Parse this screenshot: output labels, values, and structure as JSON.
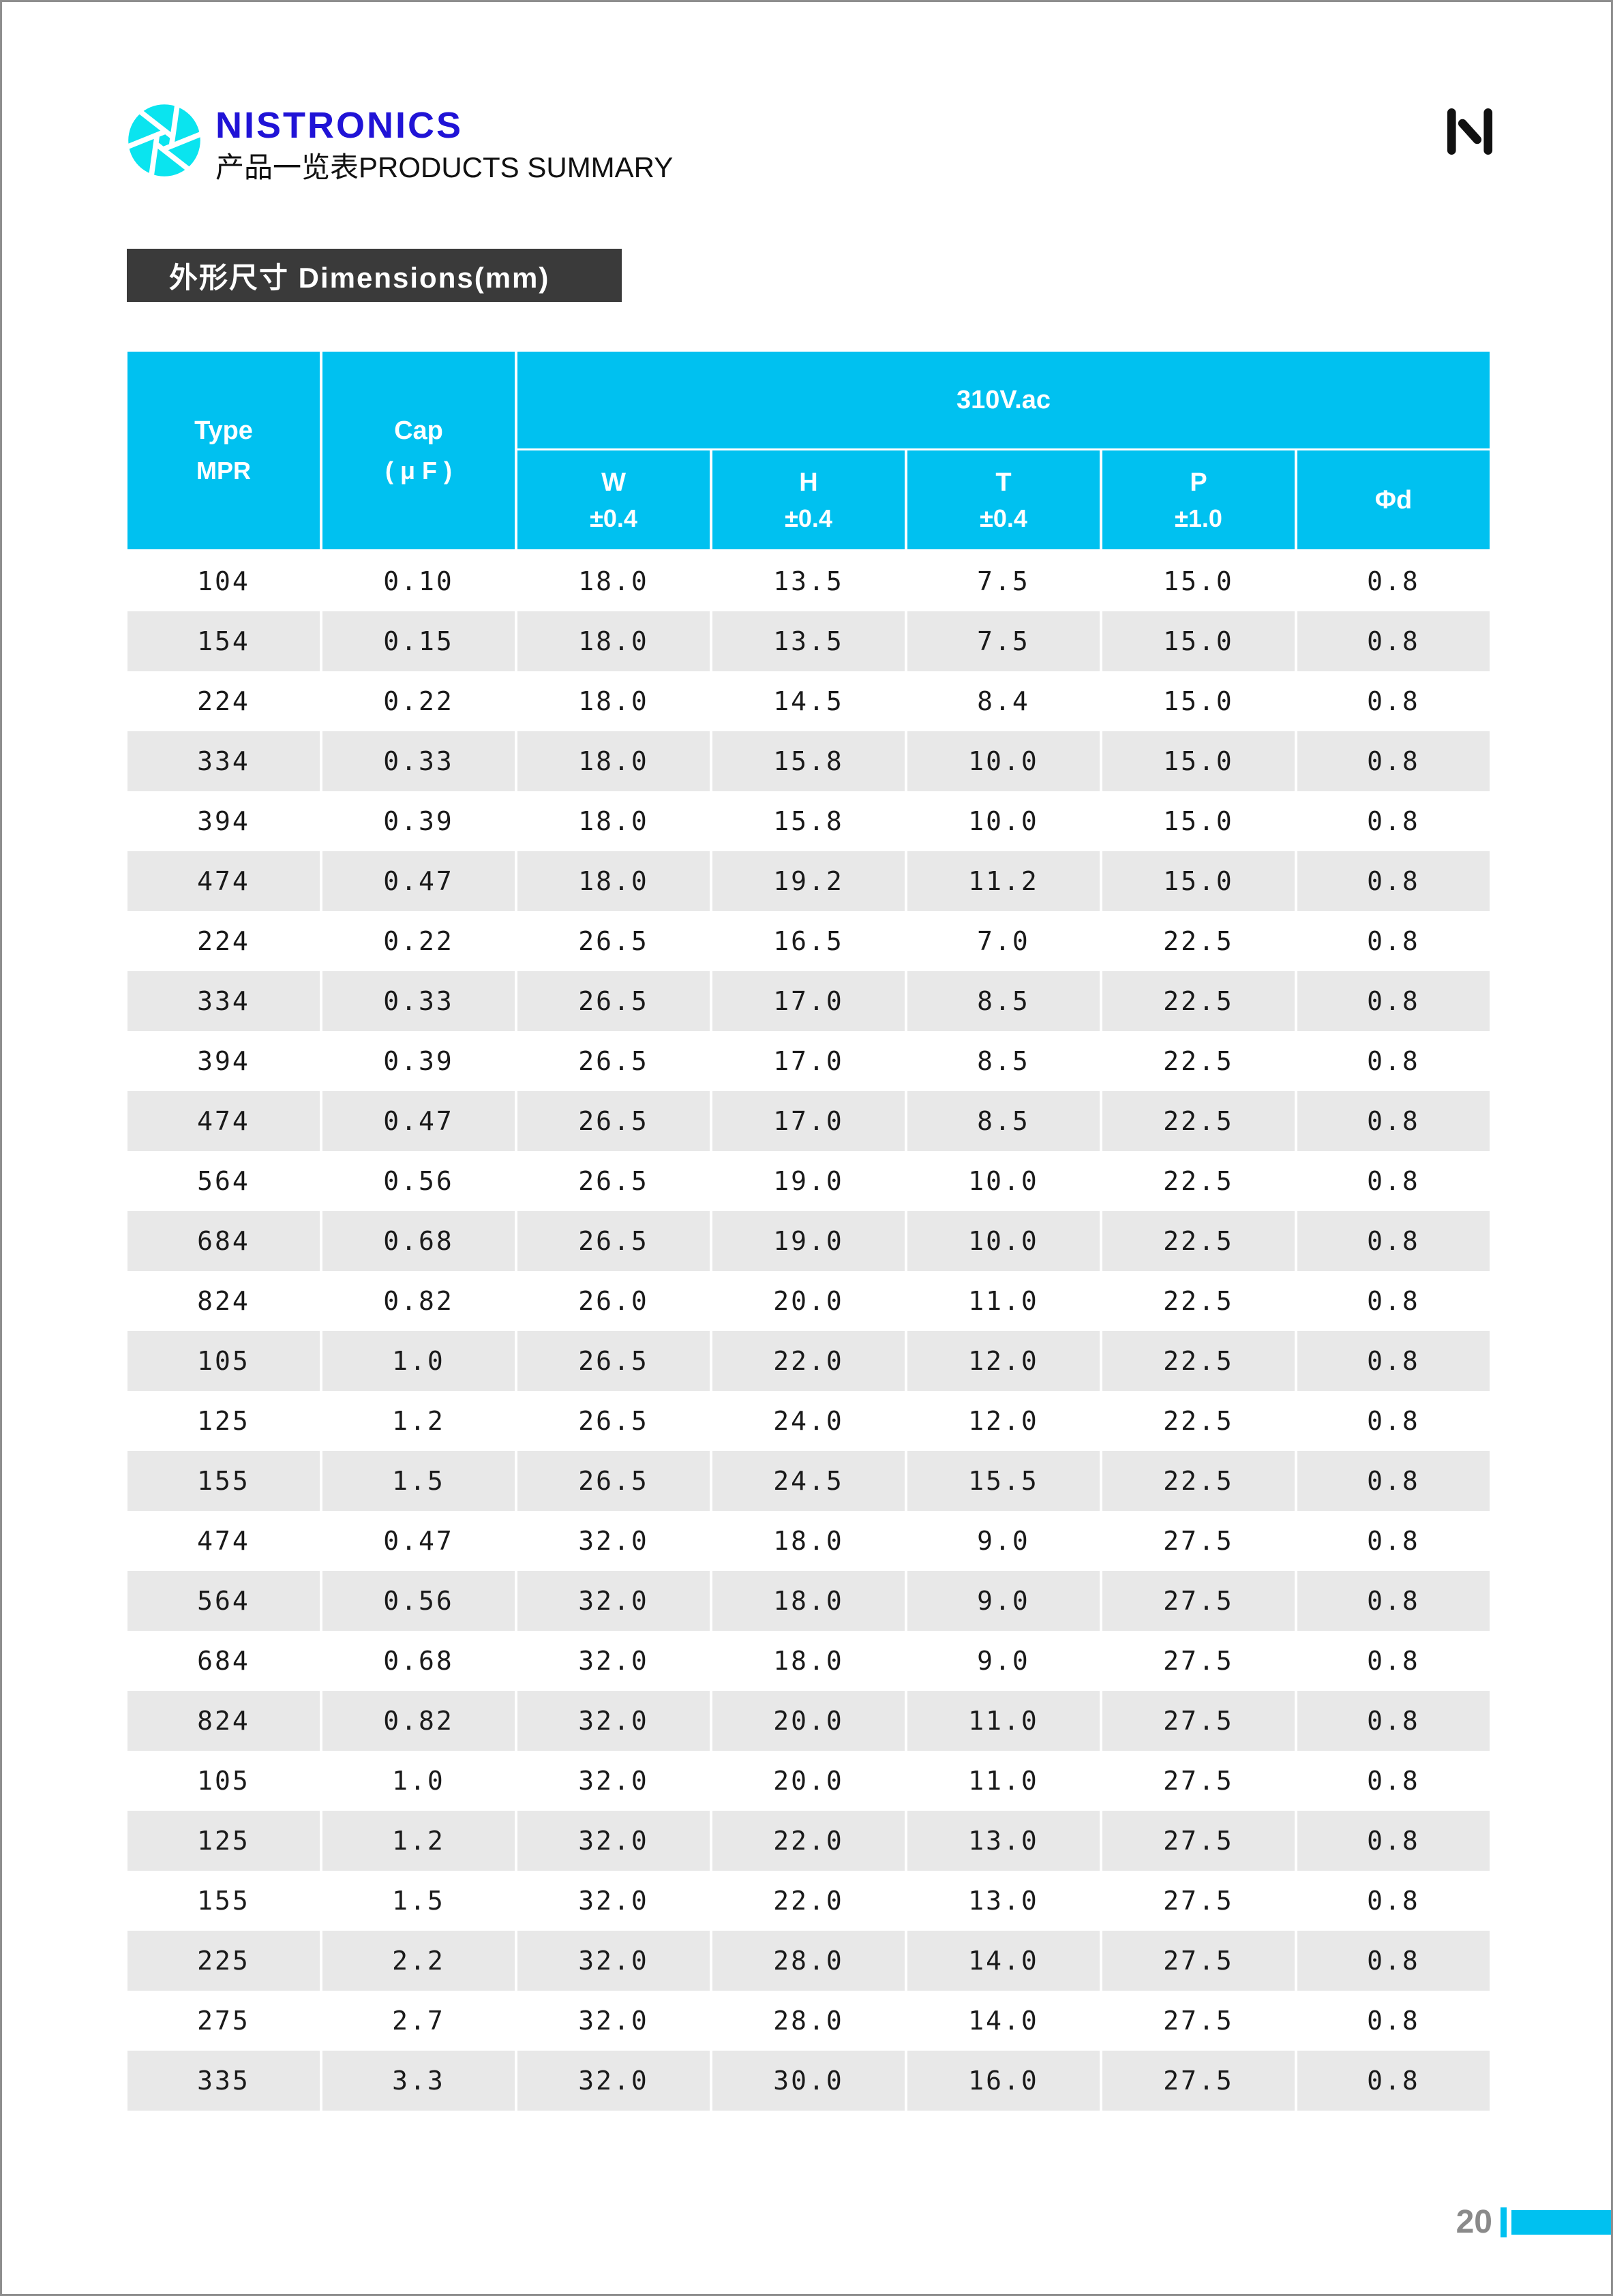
{
  "header": {
    "logo_text": "NISTRONICS",
    "logo_subtitle": "产品一览表PRODUCTS SUMMARY"
  },
  "section": {
    "title": "外形尺寸 Dimensions(mm)"
  },
  "table": {
    "type_header": {
      "line1": "Type",
      "line2": "MPR"
    },
    "cap_header": {
      "line1": "Cap",
      "line2": "( μ F )"
    },
    "group_header": "310V.ac",
    "sub_headers": [
      {
        "label": "W",
        "tolerance": "±0.4"
      },
      {
        "label": "H",
        "tolerance": "±0.4"
      },
      {
        "label": "T",
        "tolerance": "±0.4"
      },
      {
        "label": "P",
        "tolerance": "±1.0"
      },
      {
        "label": "Φd",
        "tolerance": ""
      }
    ],
    "rows": [
      [
        "104",
        "0.10",
        "18.0",
        "13.5",
        "7.5",
        "15.0",
        "0.8"
      ],
      [
        "154",
        "0.15",
        "18.0",
        "13.5",
        "7.5",
        "15.0",
        "0.8"
      ],
      [
        "224",
        "0.22",
        "18.0",
        "14.5",
        "8.4",
        "15.0",
        "0.8"
      ],
      [
        "334",
        "0.33",
        "18.0",
        "15.8",
        "10.0",
        "15.0",
        "0.8"
      ],
      [
        "394",
        "0.39",
        "18.0",
        "15.8",
        "10.0",
        "15.0",
        "0.8"
      ],
      [
        "474",
        "0.47",
        "18.0",
        "19.2",
        "11.2",
        "15.0",
        "0.8"
      ],
      [
        "224",
        "0.22",
        "26.5",
        "16.5",
        "7.0",
        "22.5",
        "0.8"
      ],
      [
        "334",
        "0.33",
        "26.5",
        "17.0",
        "8.5",
        "22.5",
        "0.8"
      ],
      [
        "394",
        "0.39",
        "26.5",
        "17.0",
        "8.5",
        "22.5",
        "0.8"
      ],
      [
        "474",
        "0.47",
        "26.5",
        "17.0",
        "8.5",
        "22.5",
        "0.8"
      ],
      [
        "564",
        "0.56",
        "26.5",
        "19.0",
        "10.0",
        "22.5",
        "0.8"
      ],
      [
        "684",
        "0.68",
        "26.5",
        "19.0",
        "10.0",
        "22.5",
        "0.8"
      ],
      [
        "824",
        "0.82",
        "26.0",
        "20.0",
        "11.0",
        "22.5",
        "0.8"
      ],
      [
        "105",
        "1.0",
        "26.5",
        "22.0",
        "12.0",
        "22.5",
        "0.8"
      ],
      [
        "125",
        "1.2",
        "26.5",
        "24.0",
        "12.0",
        "22.5",
        "0.8"
      ],
      [
        "155",
        "1.5",
        "26.5",
        "24.5",
        "15.5",
        "22.5",
        "0.8"
      ],
      [
        "474",
        "0.47",
        "32.0",
        "18.0",
        "9.0",
        "27.5",
        "0.8"
      ],
      [
        "564",
        "0.56",
        "32.0",
        "18.0",
        "9.0",
        "27.5",
        "0.8"
      ],
      [
        "684",
        "0.68",
        "32.0",
        "18.0",
        "9.0",
        "27.5",
        "0.8"
      ],
      [
        "824",
        "0.82",
        "32.0",
        "20.0",
        "11.0",
        "27.5",
        "0.8"
      ],
      [
        "105",
        "1.0",
        "32.0",
        "20.0",
        "11.0",
        "27.5",
        "0.8"
      ],
      [
        "125",
        "1.2",
        "32.0",
        "22.0",
        "13.0",
        "27.5",
        "0.8"
      ],
      [
        "155",
        "1.5",
        "32.0",
        "22.0",
        "13.0",
        "27.5",
        "0.8"
      ],
      [
        "225",
        "2.2",
        "32.0",
        "28.0",
        "14.0",
        "27.5",
        "0.8"
      ],
      [
        "275",
        "2.7",
        "32.0",
        "28.0",
        "14.0",
        "27.5",
        "0.8"
      ],
      [
        "335",
        "3.3",
        "32.0",
        "30.0",
        "16.0",
        "27.5",
        "0.8"
      ]
    ]
  },
  "footer": {
    "page_number": "20"
  },
  "colors": {
    "accent_cyan": "#00c1f0",
    "logo_blue": "#2013d6",
    "logo_icon_cyan": "#0ae4ef",
    "title_bar_bg": "#3a3a3a",
    "row_alt_gray": "#e8e8e8",
    "page_number_gray": "#8a8a8a",
    "corner_mark_black": "#111111"
  }
}
